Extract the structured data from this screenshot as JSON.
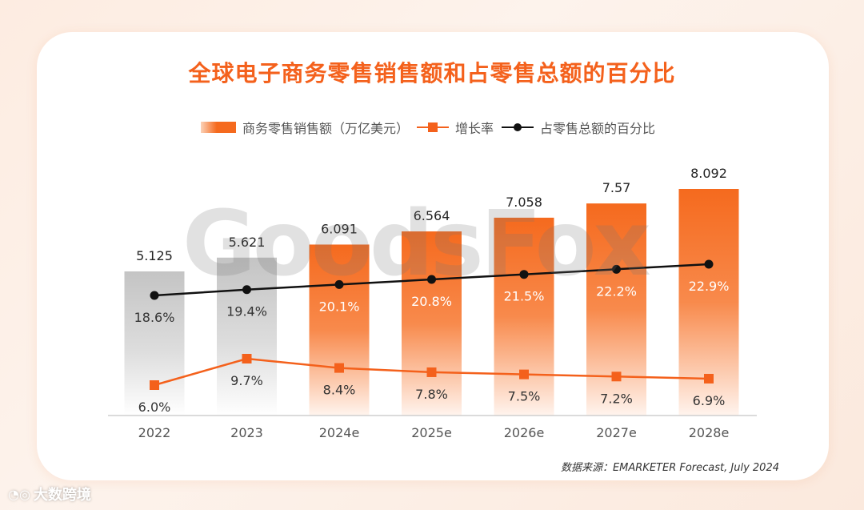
{
  "title": "全球电子商务零售销售额和占零售总额的百分比",
  "legend": {
    "sales": "商务零售销售额（万亿美元）",
    "growth": "增长率",
    "share": "占零售总额的百分比"
  },
  "source": "数据来源：EMARKETER Forecast, July 2024",
  "watermark": "GoodsFox",
  "brand": {
    "icon": "big-data-logo-icon",
    "name": "大数跨境"
  },
  "colors": {
    "accent": "#f4611c",
    "bar_actual": "#c9c9c9",
    "bar_forecast": "#f56a1e",
    "share_line": "#111111",
    "growth_line": "#f4611c"
  },
  "chart_data": {
    "type": "bar",
    "categories": [
      "2022",
      "2023",
      "2024e",
      "2025e",
      "2026e",
      "2027e",
      "2028e"
    ],
    "series": [
      {
        "name": "商务零售销售额（万亿美元）",
        "type": "bar",
        "values": [
          5.125,
          5.621,
          6.091,
          6.564,
          7.058,
          7.57,
          8.092
        ],
        "labels": [
          "5.125",
          "5.621",
          "6.091",
          "6.564",
          "7.058",
          "7.57",
          "8.092"
        ]
      },
      {
        "name": "增长率",
        "type": "line",
        "values": [
          6.0,
          9.7,
          8.4,
          7.8,
          7.5,
          7.2,
          6.9
        ],
        "labels": [
          "6.0%",
          "9.7%",
          "8.4%",
          "7.8%",
          "7.5%",
          "7.2%",
          "6.9%"
        ]
      },
      {
        "name": "占零售总额的百分比",
        "type": "line",
        "values": [
          18.6,
          19.4,
          20.1,
          20.8,
          21.5,
          22.2,
          22.9
        ],
        "labels": [
          "18.6%",
          "19.4%",
          "20.1%",
          "20.8%",
          "21.5%",
          "22.2%",
          "22.9%"
        ]
      }
    ],
    "legend_position": "top-center",
    "grid": false
  }
}
